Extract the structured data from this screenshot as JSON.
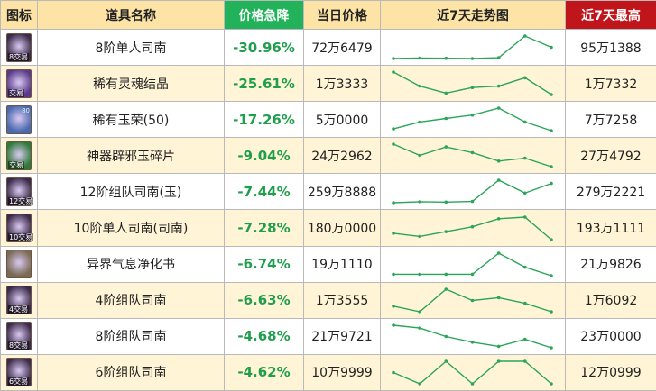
{
  "headers": {
    "icon": "图标",
    "name": "道具名称",
    "drop": "价格急降",
    "price": "当日价格",
    "trend": "近7天走势图",
    "max": "近7天最高"
  },
  "colors": {
    "drop_header": "#22b25a",
    "max_header": "#c0151b",
    "header_bg": "#fde4a6",
    "row_alt": "#fff4d6",
    "trend_line": "#2aa55a",
    "drop_text": "#1e9f4c"
  },
  "rows": [
    {
      "icon": "navigator-scroll-icon",
      "icon_color": "#3b2a4a",
      "icon_tag": "8交易",
      "icon_badge": "",
      "name": "8阶单人司南",
      "drop": "-30.96%",
      "price": "72万6479",
      "max": "95万1388",
      "trend": [
        1.0,
        1.2,
        1.1,
        1.0,
        1.3,
        9.0,
        5.0
      ]
    },
    {
      "icon": "soul-crystal-icon",
      "icon_color": "#5a3a8a",
      "icon_tag": "交易",
      "icon_badge": "",
      "name": "稀有灵魂结晶",
      "drop": "-25.61%",
      "price": "1万3333",
      "max": "1万7332",
      "trend": [
        9.0,
        4.0,
        1.5,
        3.5,
        4.0,
        7.0,
        1.0
      ]
    },
    {
      "icon": "jade-orb-icon",
      "icon_color": "#4a6ab0",
      "icon_tag": "",
      "icon_badge": "80",
      "name": "稀有玉荣(50)",
      "drop": "-17.26%",
      "price": "5万0000",
      "max": "7万7258",
      "trend": [
        2.0,
        4.0,
        5.0,
        6.0,
        8.0,
        4.0,
        1.5
      ]
    },
    {
      "icon": "artifact-jade-icon",
      "icon_color": "#2f7a3a",
      "icon_tag": "交易",
      "icon_badge": "",
      "name": "神器辟邪玉碎片",
      "drop": "-9.04%",
      "price": "24万2962",
      "max": "27万4792",
      "trend": [
        9.0,
        5.0,
        8.0,
        6.0,
        3.0,
        4.0,
        1.0
      ]
    },
    {
      "icon": "navigator-scroll-icon",
      "icon_color": "#3b2a4a",
      "icon_tag": "12交易",
      "icon_badge": "",
      "name": "12阶组队司南(玉)",
      "drop": "-7.44%",
      "price": "259万8888",
      "max": "279万2221",
      "trend": [
        1.0,
        1.3,
        1.2,
        1.4,
        8.0,
        4.0,
        7.0
      ]
    },
    {
      "icon": "navigator-scroll-icon",
      "icon_color": "#3b2a4a",
      "icon_tag": "10交易",
      "icon_badge": "",
      "name": "10阶单人司南(司南)",
      "drop": "-7.28%",
      "price": "180万0000",
      "max": "193万1111",
      "trend": [
        3.0,
        2.0,
        3.5,
        5.0,
        7.5,
        8.0,
        1.0
      ]
    },
    {
      "icon": "purify-book-icon",
      "icon_color": "#7a6a55",
      "icon_tag": "",
      "icon_badge": "",
      "name": "异界气息净化书",
      "drop": "-6.74%",
      "price": "19万1110",
      "max": "21万9826",
      "trend": [
        1.5,
        1.5,
        1.5,
        1.5,
        9.0,
        4.0,
        1.0
      ]
    },
    {
      "icon": "navigator-scroll-icon",
      "icon_color": "#3b2a4a",
      "icon_tag": "4交易",
      "icon_badge": "",
      "name": "4阶组队司南",
      "drop": "-6.63%",
      "price": "1万3555",
      "max": "1万6092",
      "trend": [
        5.0,
        4.0,
        8.0,
        6.0,
        6.5,
        5.5,
        4.0
      ]
    },
    {
      "icon": "navigator-scroll-icon",
      "icon_color": "#3b2a4a",
      "icon_tag": "8交易",
      "icon_badge": "",
      "name": "8阶组队司南",
      "drop": "-4.68%",
      "price": "21万9721",
      "max": "23万0000",
      "trend": [
        9.0,
        8.0,
        5.0,
        3.0,
        1.5,
        4.0,
        1.0
      ]
    },
    {
      "icon": "navigator-scroll-icon",
      "icon_color": "#3b2a4a",
      "icon_tag": "6交易",
      "icon_badge": "",
      "name": "6阶组队司南",
      "drop": "-4.62%",
      "price": "10万9999",
      "max": "12万0999",
      "trend": [
        4.0,
        1.0,
        7.0,
        1.0,
        7.0,
        7.0,
        1.0
      ]
    }
  ]
}
